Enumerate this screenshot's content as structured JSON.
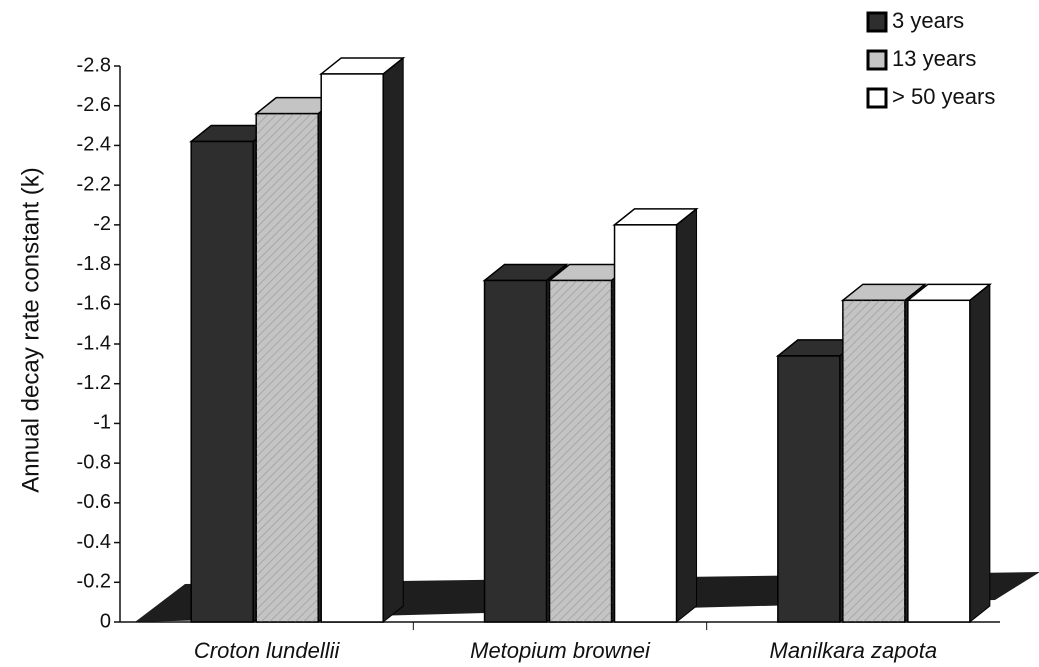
{
  "chart_data": {
    "type": "bar3d",
    "y_label": "Annual decay rate constant (k)",
    "categories": [
      "Croton lundellii",
      "Metopium brownei",
      "Manilkara zapota"
    ],
    "series": [
      {
        "name": "3 years",
        "color": "#2e2e2e",
        "values": [
          -2.42,
          -1.72,
          -1.34
        ]
      },
      {
        "name": "13 years",
        "color": "#c4c4c4",
        "values": [
          -2.56,
          -1.72,
          -1.62
        ]
      },
      {
        "name": "> 50 years",
        "color": "#ffffff",
        "values": [
          -2.76,
          -2.0,
          -1.62
        ]
      }
    ],
    "ylim": [
      0,
      -2.8
    ],
    "yticks": [
      0,
      -0.2,
      -0.4,
      -0.6,
      -0.8,
      -1,
      -1.2,
      -1.4,
      -1.6,
      -1.8,
      -2,
      -2.2,
      -2.4,
      -2.6,
      -2.8
    ],
    "legend": "top-right"
  }
}
